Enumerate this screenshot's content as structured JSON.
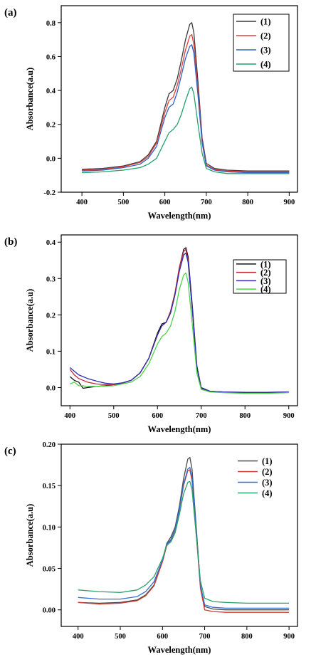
{
  "chart_data": [
    {
      "panel_label": "(a)",
      "type": "line",
      "xlabel": "Wavelength(nm)",
      "ylabel": "Absorbance(a.u)",
      "xlim": [
        350,
        920
      ],
      "ylim": [
        -0.2,
        0.9
      ],
      "xticks": [
        400,
        500,
        600,
        700,
        800,
        900
      ],
      "xtick_labels": [
        "400",
        "500",
        "600",
        "700",
        "800",
        "900"
      ],
      "yticks": [
        -0.2,
        0.0,
        0.2,
        0.4,
        0.6,
        0.8
      ],
      "ytick_labels": [
        "-0.2",
        "0.0",
        "0.2",
        "0.4",
        "0.6",
        "0.8"
      ],
      "legend_position": "top-right",
      "x": [
        400,
        450,
        500,
        540,
        560,
        580,
        600,
        610,
        620,
        630,
        640,
        650,
        660,
        665,
        670,
        680,
        690,
        700,
        720,
        750,
        800,
        850,
        900
      ],
      "series": [
        {
          "name": "(1)",
          "color": "#3a3a3a",
          "values": [
            -0.065,
            -0.06,
            -0.045,
            -0.02,
            0.02,
            0.1,
            0.3,
            0.38,
            0.4,
            0.47,
            0.58,
            0.7,
            0.79,
            0.8,
            0.74,
            0.45,
            0.12,
            -0.03,
            -0.06,
            -0.07,
            -0.075,
            -0.075,
            -0.075
          ]
        },
        {
          "name": "(2)",
          "color": "#e0413a",
          "values": [
            -0.07,
            -0.065,
            -0.05,
            -0.025,
            0.01,
            0.09,
            0.27,
            0.34,
            0.36,
            0.43,
            0.53,
            0.64,
            0.72,
            0.73,
            0.67,
            0.4,
            0.1,
            -0.04,
            -0.065,
            -0.075,
            -0.08,
            -0.08,
            -0.08
          ]
        },
        {
          "name": "(3)",
          "color": "#2f62c9",
          "values": [
            -0.075,
            -0.07,
            -0.055,
            -0.035,
            0.0,
            0.07,
            0.24,
            0.3,
            0.32,
            0.39,
            0.49,
            0.59,
            0.66,
            0.67,
            0.62,
            0.37,
            0.09,
            -0.045,
            -0.07,
            -0.08,
            -0.085,
            -0.085,
            -0.085
          ]
        },
        {
          "name": "(4)",
          "color": "#23a06a",
          "values": [
            -0.085,
            -0.08,
            -0.07,
            -0.055,
            -0.035,
            0.0,
            0.1,
            0.15,
            0.17,
            0.2,
            0.26,
            0.34,
            0.41,
            0.42,
            0.38,
            0.2,
            0.03,
            -0.06,
            -0.08,
            -0.09,
            -0.09,
            -0.09,
            -0.09
          ]
        }
      ]
    },
    {
      "panel_label": "(b)",
      "type": "line",
      "xlabel": "Wavelength(nm)",
      "ylabel": "Absorbance(a.u)",
      "xlim": [
        380,
        920
      ],
      "ylim": [
        -0.05,
        0.42
      ],
      "xticks": [
        400,
        500,
        600,
        700,
        800,
        900
      ],
      "xtick_labels": [
        "400",
        "500",
        "600",
        "700",
        "800",
        "900"
      ],
      "yticks": [
        0.0,
        0.1,
        0.2,
        0.3,
        0.4
      ],
      "ytick_labels": [
        "0.0",
        "0.1",
        "0.2",
        "0.3",
        "0.4"
      ],
      "legend_position": "top-right",
      "x": [
        400,
        410,
        420,
        430,
        440,
        460,
        480,
        500,
        520,
        540,
        560,
        580,
        600,
        610,
        620,
        630,
        640,
        650,
        660,
        665,
        670,
        680,
        690,
        700,
        720,
        750,
        800,
        850,
        900
      ],
      "series": [
        {
          "name": "(1)",
          "color": "#111111",
          "values": [
            0.03,
            0.02,
            0.015,
            -0.002,
            0.0,
            0.003,
            0.005,
            0.008,
            0.012,
            0.02,
            0.04,
            0.08,
            0.15,
            0.175,
            0.18,
            0.21,
            0.26,
            0.33,
            0.38,
            0.385,
            0.36,
            0.22,
            0.06,
            0.0,
            -0.01,
            -0.012,
            -0.015,
            -0.015,
            -0.012
          ]
        },
        {
          "name": "(2)",
          "color": "#c0273b",
          "values": [
            0.05,
            0.035,
            0.025,
            0.02,
            0.015,
            0.01,
            0.008,
            0.008,
            0.012,
            0.02,
            0.04,
            0.08,
            0.145,
            0.17,
            0.18,
            0.21,
            0.26,
            0.33,
            0.375,
            0.38,
            0.35,
            0.21,
            0.055,
            -0.002,
            -0.01,
            -0.012,
            -0.013,
            -0.013,
            -0.012
          ]
        },
        {
          "name": "(3)",
          "color": "#2d2db8",
          "values": [
            0.055,
            0.045,
            0.035,
            0.03,
            0.025,
            0.018,
            0.012,
            0.01,
            0.013,
            0.02,
            0.04,
            0.08,
            0.145,
            0.17,
            0.18,
            0.205,
            0.255,
            0.32,
            0.365,
            0.37,
            0.345,
            0.21,
            0.055,
            -0.002,
            -0.01,
            -0.012,
            -0.013,
            -0.013,
            -0.012
          ]
        },
        {
          "name": "(4)",
          "color": "#4ad44a",
          "values": [
            0.01,
            0.015,
            0.005,
            0.005,
            0.003,
            0.003,
            0.004,
            0.005,
            0.01,
            0.015,
            0.03,
            0.065,
            0.12,
            0.14,
            0.15,
            0.17,
            0.21,
            0.27,
            0.31,
            0.315,
            0.29,
            0.17,
            0.04,
            -0.005,
            -0.012,
            -0.014,
            -0.016,
            -0.016,
            -0.014
          ]
        }
      ]
    },
    {
      "panel_label": "(c)",
      "type": "line",
      "xlabel": "Wavelength(nm)",
      "ylabel": "Absorbance(a.u)",
      "xlim": [
        360,
        920
      ],
      "ylim": [
        -0.02,
        0.2
      ],
      "xticks": [
        400,
        500,
        600,
        700,
        800,
        900
      ],
      "xtick_labels": [
        "400",
        "500",
        "600",
        "700",
        "800",
        "900"
      ],
      "yticks": [
        0.0,
        0.05,
        0.1,
        0.15,
        0.2
      ],
      "ytick_labels": [
        "0.00",
        "0.05",
        "0.10",
        "0.15",
        "0.20"
      ],
      "legend_position": "top-right",
      "x": [
        400,
        450,
        500,
        540,
        560,
        580,
        600,
        610,
        620,
        630,
        640,
        650,
        660,
        665,
        670,
        680,
        690,
        700,
        720,
        750,
        800,
        850,
        900
      ],
      "series": [
        {
          "name": "(1)",
          "color": "#4a4a4a",
          "values": [
            0.009,
            0.008,
            0.009,
            0.012,
            0.018,
            0.03,
            0.06,
            0.08,
            0.088,
            0.1,
            0.125,
            0.158,
            0.182,
            0.184,
            0.17,
            0.1,
            0.03,
            0.004,
            0.001,
            0.0,
            0.0,
            0.0,
            0.0
          ]
        },
        {
          "name": "(2)",
          "color": "#d33a2c",
          "values": [
            0.009,
            0.007,
            0.008,
            0.011,
            0.017,
            0.029,
            0.058,
            0.077,
            0.084,
            0.096,
            0.12,
            0.15,
            0.168,
            0.169,
            0.156,
            0.092,
            0.026,
            0.0,
            -0.002,
            -0.003,
            -0.003,
            -0.003,
            -0.003
          ]
        },
        {
          "name": "(3)",
          "color": "#2f6fd6",
          "values": [
            0.015,
            0.013,
            0.013,
            0.016,
            0.022,
            0.034,
            0.06,
            0.079,
            0.085,
            0.097,
            0.121,
            0.152,
            0.17,
            0.172,
            0.16,
            0.095,
            0.03,
            0.006,
            0.003,
            0.002,
            0.002,
            0.002,
            0.002
          ]
        },
        {
          "name": "(4)",
          "color": "#2aa36a",
          "values": [
            0.024,
            0.022,
            0.021,
            0.024,
            0.03,
            0.04,
            0.062,
            0.078,
            0.082,
            0.093,
            0.115,
            0.14,
            0.154,
            0.155,
            0.145,
            0.09,
            0.035,
            0.014,
            0.01,
            0.009,
            0.008,
            0.008,
            0.008
          ]
        }
      ]
    }
  ]
}
